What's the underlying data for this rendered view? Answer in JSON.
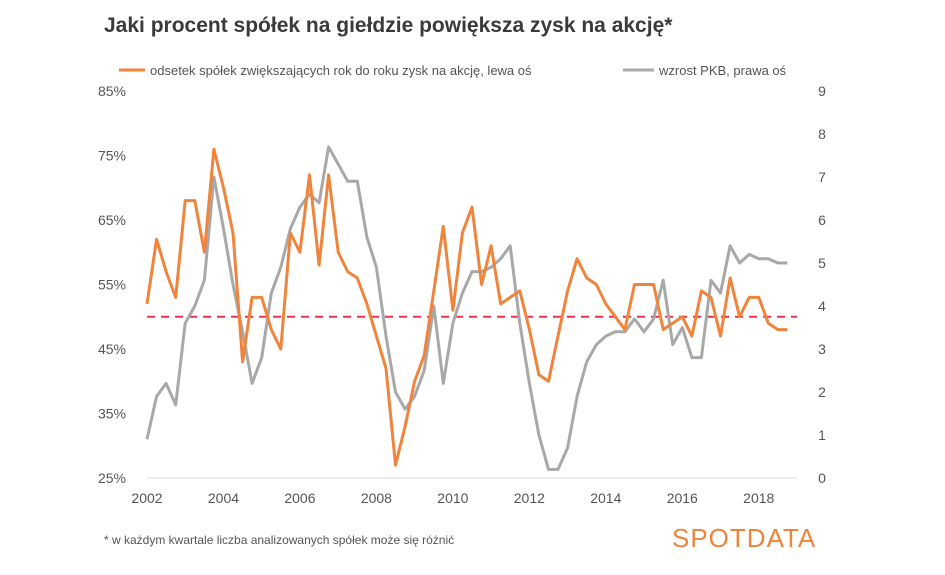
{
  "title": "Jaki procent spółek na giełdzie powiększa zysk na akcję*",
  "footnote": "* w każdym kwartale liczba analizowanych spółek może się różnić",
  "logo": "SPOTDATA",
  "chart_data": {
    "type": "line",
    "legend_position": "top",
    "grid": false,
    "colors": {
      "series0": "#f0843c",
      "series1": "#a8a8a8",
      "reference": "#e8334a"
    },
    "x_ticks": [
      "2002",
      "2004",
      "2006",
      "2008",
      "2010",
      "2012",
      "2014",
      "2016",
      "2018"
    ],
    "x_range": [
      2002,
      2019
    ],
    "left_axis": {
      "min": 25,
      "max": 85,
      "ticks": [
        "25%",
        "35%",
        "45%",
        "55%",
        "65%",
        "75%",
        "85%"
      ]
    },
    "right_axis": {
      "min": 0,
      "max": 9,
      "ticks": [
        "0",
        "1",
        "2",
        "3",
        "4",
        "5",
        "6",
        "7",
        "8",
        "9"
      ]
    },
    "reference_line": {
      "axis": "left",
      "value": 50,
      "style": "dashed"
    },
    "series": [
      {
        "name": "odsetek spółek zwiększających rok do roku zysk na akcję, lewa oś",
        "axis": "left",
        "x": [
          2002.0,
          2002.25,
          2002.5,
          2002.75,
          2003.0,
          2003.25,
          2003.5,
          2003.75,
          2004.0,
          2004.25,
          2004.5,
          2004.75,
          2005.0,
          2005.25,
          2005.5,
          2005.75,
          2006.0,
          2006.25,
          2006.5,
          2006.75,
          2007.0,
          2007.25,
          2007.5,
          2007.75,
          2008.0,
          2008.25,
          2008.5,
          2008.75,
          2009.0,
          2009.25,
          2009.5,
          2009.75,
          2010.0,
          2010.25,
          2010.5,
          2010.75,
          2011.0,
          2011.25,
          2011.5,
          2011.75,
          2012.0,
          2012.25,
          2012.5,
          2012.75,
          2013.0,
          2013.25,
          2013.5,
          2013.75,
          2014.0,
          2014.25,
          2014.5,
          2014.75,
          2015.0,
          2015.25,
          2015.5,
          2015.75,
          2016.0,
          2016.25,
          2016.5,
          2016.75,
          2017.0,
          2017.25,
          2017.5,
          2017.75,
          2018.0,
          2018.25,
          2018.5,
          2018.75
        ],
        "values": [
          52,
          62,
          57,
          53,
          68,
          68,
          60,
          76,
          70,
          63,
          43,
          53,
          53,
          48,
          45,
          63,
          60,
          72,
          58,
          72,
          60,
          57,
          56,
          52,
          47,
          42,
          27,
          33,
          40,
          44,
          54,
          64,
          51,
          63,
          67,
          55,
          61,
          52,
          53,
          54,
          48,
          41,
          40,
          47,
          54,
          59,
          56,
          55,
          52,
          50,
          48,
          55,
          55,
          55,
          48,
          49,
          50,
          47,
          54,
          53,
          47,
          56,
          50,
          53,
          53,
          49,
          48,
          48
        ]
      },
      {
        "name": "wzrost PKB, prawa oś",
        "axis": "right",
        "x": [
          2002.0,
          2002.25,
          2002.5,
          2002.75,
          2003.0,
          2003.25,
          2003.5,
          2003.75,
          2004.0,
          2004.25,
          2004.5,
          2004.75,
          2005.0,
          2005.25,
          2005.5,
          2005.75,
          2006.0,
          2006.25,
          2006.5,
          2006.75,
          2007.0,
          2007.25,
          2007.5,
          2007.75,
          2008.0,
          2008.25,
          2008.5,
          2008.75,
          2009.0,
          2009.25,
          2009.5,
          2009.75,
          2010.0,
          2010.25,
          2010.5,
          2010.75,
          2011.0,
          2011.25,
          2011.5,
          2011.75,
          2012.0,
          2012.25,
          2012.5,
          2012.75,
          2013.0,
          2013.25,
          2013.5,
          2013.75,
          2014.0,
          2014.25,
          2014.5,
          2014.75,
          2015.0,
          2015.25,
          2015.5,
          2015.75,
          2016.0,
          2016.25,
          2016.5,
          2016.75,
          2017.0,
          2017.25,
          2017.5,
          2017.75,
          2018.0,
          2018.25,
          2018.5,
          2018.75
        ],
        "values": [
          0.9,
          1.9,
          2.2,
          1.7,
          3.6,
          4.0,
          4.6,
          7.0,
          5.8,
          4.5,
          3.4,
          2.2,
          2.8,
          4.3,
          4.9,
          5.8,
          6.3,
          6.6,
          6.4,
          7.7,
          7.3,
          6.9,
          6.9,
          5.6,
          4.9,
          3.3,
          2.0,
          1.6,
          1.9,
          2.5,
          4.0,
          2.2,
          3.6,
          4.3,
          4.8,
          4.8,
          4.9,
          5.1,
          5.4,
          3.6,
          2.2,
          1.0,
          0.2,
          0.2,
          0.7,
          1.9,
          2.7,
          3.1,
          3.3,
          3.4,
          3.4,
          3.7,
          3.4,
          3.7,
          4.6,
          3.1,
          3.5,
          2.8,
          2.8,
          4.6,
          4.3,
          5.4,
          5.0,
          5.2,
          5.1,
          5.1,
          5.0,
          5.0
        ]
      }
    ]
  }
}
